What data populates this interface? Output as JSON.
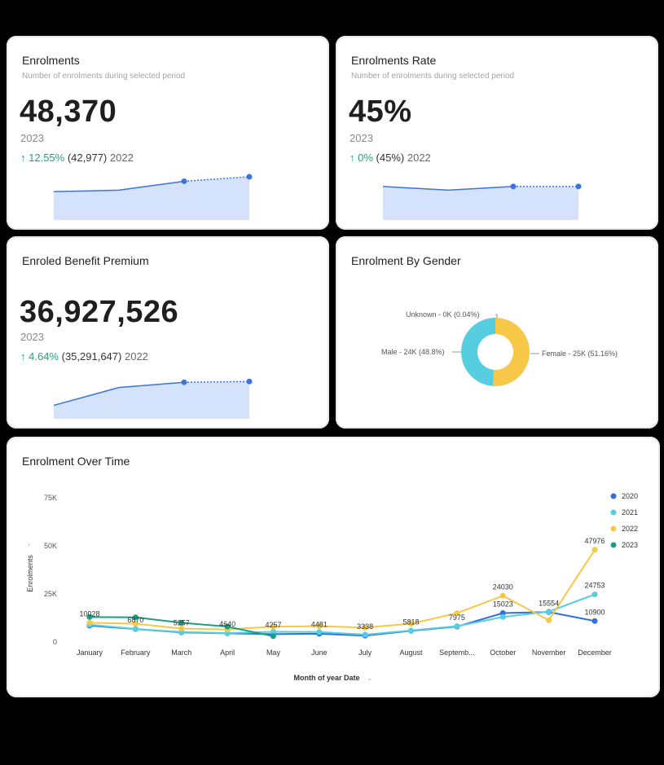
{
  "colors": {
    "background": "#000000",
    "card": "#ffffff",
    "accent_line": "#3d73dc",
    "accent_fill": "#d5e2fb",
    "positive": "#1ea672",
    "series_2020": "#2f6fe0",
    "series_2021": "#56cde0",
    "series_2022": "#f7c748",
    "series_2023": "#1a9e87"
  },
  "kpi_enrolments": {
    "title": "Enrolments",
    "subtitle": "Number of enrolments during selected period",
    "value": "48,370",
    "year": "2023",
    "change_arrow": "↑",
    "change_pct": "12.55%",
    "prev_value": "(42,977)",
    "prev_year": "2022",
    "sparkline": [
      38,
      40,
      52,
      58
    ]
  },
  "kpi_rate": {
    "title": "Enrolments Rate",
    "subtitle": "Number of enrolments during selected period",
    "value": "45%",
    "year": "2023",
    "change_arrow": "↑",
    "change_pct": "0%",
    "prev_value": "(45%)",
    "prev_year": "2022",
    "sparkline": [
      45,
      40,
      45,
      45
    ]
  },
  "kpi_premium": {
    "title": "Enroled Benefit Premium",
    "value": "36,927,526",
    "year": "2023",
    "change_arrow": "↑",
    "change_pct": "4.64%",
    "prev_value": "(35,291,647)",
    "prev_year": "2022",
    "sparkline": [
      18,
      42,
      49,
      50
    ]
  },
  "gender": {
    "title": "Enrolment By Gender",
    "labels": {
      "unknown": "Unknown - 0K (0.04%)",
      "male": "Male - 24K (48.8%)",
      "female": "Female - 25K (51.16%)"
    },
    "chart_data": {
      "type": "pie",
      "categories": [
        "Female",
        "Male",
        "Unknown"
      ],
      "values": [
        51.16,
        48.8,
        0.04
      ],
      "colors": [
        "#f7c748",
        "#56cde0",
        "#2f6fe0"
      ]
    }
  },
  "overtime": {
    "title": "Enrolment Over Time",
    "xlabel": "Month of year Date",
    "ylabel": "Enrolments",
    "legend": [
      "2020",
      "2021",
      "2022",
      "2023"
    ]
  },
  "chart_data": {
    "type": "line",
    "title": "Enrolment Over Time",
    "xlabel": "Month of year Date",
    "ylabel": "Enrolments",
    "categories": [
      "January",
      "February",
      "March",
      "April",
      "May",
      "June",
      "July",
      "August",
      "Septemb...",
      "October",
      "November",
      "December"
    ],
    "ylim": [
      0,
      75000
    ],
    "yticks": [
      0,
      25000,
      50000,
      75000
    ],
    "ytick_labels": [
      "0",
      "25K",
      "50K",
      "75K"
    ],
    "legend_position": "right",
    "series": [
      {
        "name": "2020",
        "color": "#2f6fe0",
        "values": [
          8500,
          6700,
          5000,
          4500,
          4100,
          4300,
          3300,
          5800,
          8000,
          15023,
          15554,
          10900
        ]
      },
      {
        "name": "2021",
        "color": "#56cde0",
        "values": [
          9000,
          6800,
          5200,
          4600,
          5300,
          5200,
          3800,
          6000,
          8200,
          13000,
          15800,
          24753
        ]
      },
      {
        "name": "2022",
        "color": "#f7c748",
        "values": [
          10028,
          9500,
          7000,
          6500,
          8000,
          8200,
          7500,
          9500,
          15000,
          24030,
          11300,
          47976
        ]
      },
      {
        "name": "2023",
        "color": "#1a9e87",
        "values": [
          13000,
          12800,
          10000,
          8000,
          3000,
          null,
          null,
          null,
          null,
          null,
          null,
          null
        ]
      }
    ],
    "annotations": [
      {
        "x": "January",
        "label": "10028",
        "value": 10028
      },
      {
        "x": "February",
        "label": "6870",
        "value": 6870
      },
      {
        "x": "March",
        "label": "5257",
        "value": 5257
      },
      {
        "x": "April",
        "label": "4640",
        "value": 4640
      },
      {
        "x": "May",
        "label": "4257",
        "value": 4257
      },
      {
        "x": "June",
        "label": "4481",
        "value": 4481
      },
      {
        "x": "July",
        "label": "3338",
        "value": 3338
      },
      {
        "x": "August",
        "label": "5818",
        "value": 5818
      },
      {
        "x": "Septemb...",
        "label": "7975",
        "value": 7975
      },
      {
        "x": "October",
        "label": "24030",
        "value": 24030
      },
      {
        "x": "October",
        "label": "15023",
        "value": 15023
      },
      {
        "x": "November",
        "label": "15554",
        "value": 15554
      },
      {
        "x": "December",
        "label": "47976",
        "value": 47976
      },
      {
        "x": "December",
        "label": "24753",
        "value": 24753
      },
      {
        "x": "December",
        "label": "10900",
        "value": 10900
      }
    ]
  }
}
